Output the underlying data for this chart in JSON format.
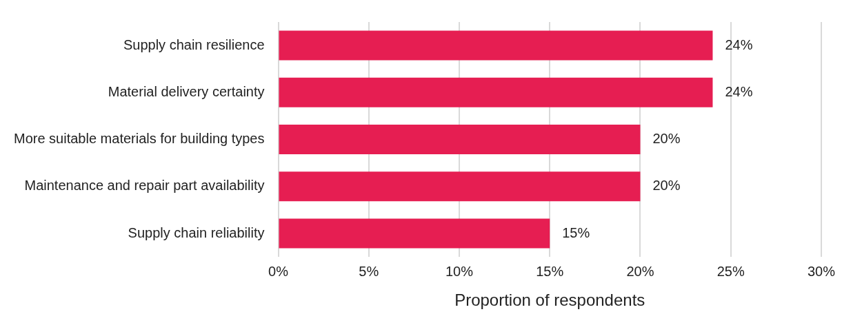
{
  "chart_data": {
    "type": "bar",
    "orientation": "horizontal",
    "categories": [
      "Supply chain resilience",
      "Material delivery certainty",
      "More suitable materials for building types",
      "Maintenance and repair part availability",
      "Supply chain reliability"
    ],
    "values": [
      24,
      24,
      20,
      20,
      15
    ],
    "value_labels": [
      "24%",
      "24%",
      "20%",
      "20%",
      "15%"
    ],
    "color": "#e61e52",
    "xlabel": "Proportion of respondents",
    "xlim": [
      0,
      30
    ],
    "xticks": [
      {
        "value": 0,
        "label": "0%"
      },
      {
        "value": 5,
        "label": "5%"
      },
      {
        "value": 10,
        "label": "10%"
      },
      {
        "value": 15,
        "label": "15%"
      },
      {
        "value": 20,
        "label": "20%"
      },
      {
        "value": 25,
        "label": "25%"
      },
      {
        "value": 30,
        "label": "30%"
      }
    ],
    "grid": "x",
    "legend": false
  }
}
